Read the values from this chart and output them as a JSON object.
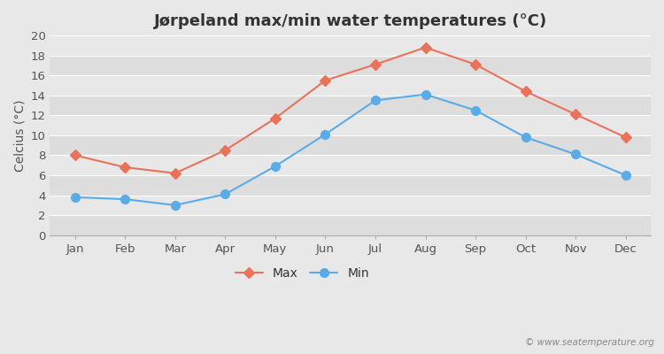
{
  "title": "Jørpeland max/min water temperatures (°C)",
  "months": [
    "Jan",
    "Feb",
    "Mar",
    "Apr",
    "May",
    "Jun",
    "Jul",
    "Aug",
    "Sep",
    "Oct",
    "Nov",
    "Dec"
  ],
  "max_temps": [
    8.0,
    6.8,
    6.2,
    8.5,
    11.7,
    15.5,
    17.1,
    18.8,
    17.1,
    14.4,
    12.1,
    9.8
  ],
  "min_temps": [
    3.8,
    3.6,
    3.0,
    4.1,
    6.9,
    10.1,
    13.5,
    14.1,
    12.5,
    9.8,
    8.1,
    6.0
  ],
  "max_color": "#e8735a",
  "min_color": "#5aace8",
  "max_label": "Max",
  "min_label": "Min",
  "ylabel": "Celcius (°C)",
  "ylim": [
    0,
    20
  ],
  "yticks": [
    0,
    2,
    4,
    6,
    8,
    10,
    12,
    14,
    16,
    18,
    20
  ],
  "bg_color": "#e8e8e8",
  "plot_bg_color": "#e4e4e4",
  "grid_color": "#f5f5f5",
  "watermark": "© www.seatemperature.org",
  "title_fontsize": 13,
  "axis_fontsize": 10,
  "tick_fontsize": 9.5,
  "legend_fontsize": 10,
  "max_marker": "D",
  "min_marker": "o",
  "max_marker_size": 6,
  "min_marker_size": 7,
  "line_width": 1.5
}
